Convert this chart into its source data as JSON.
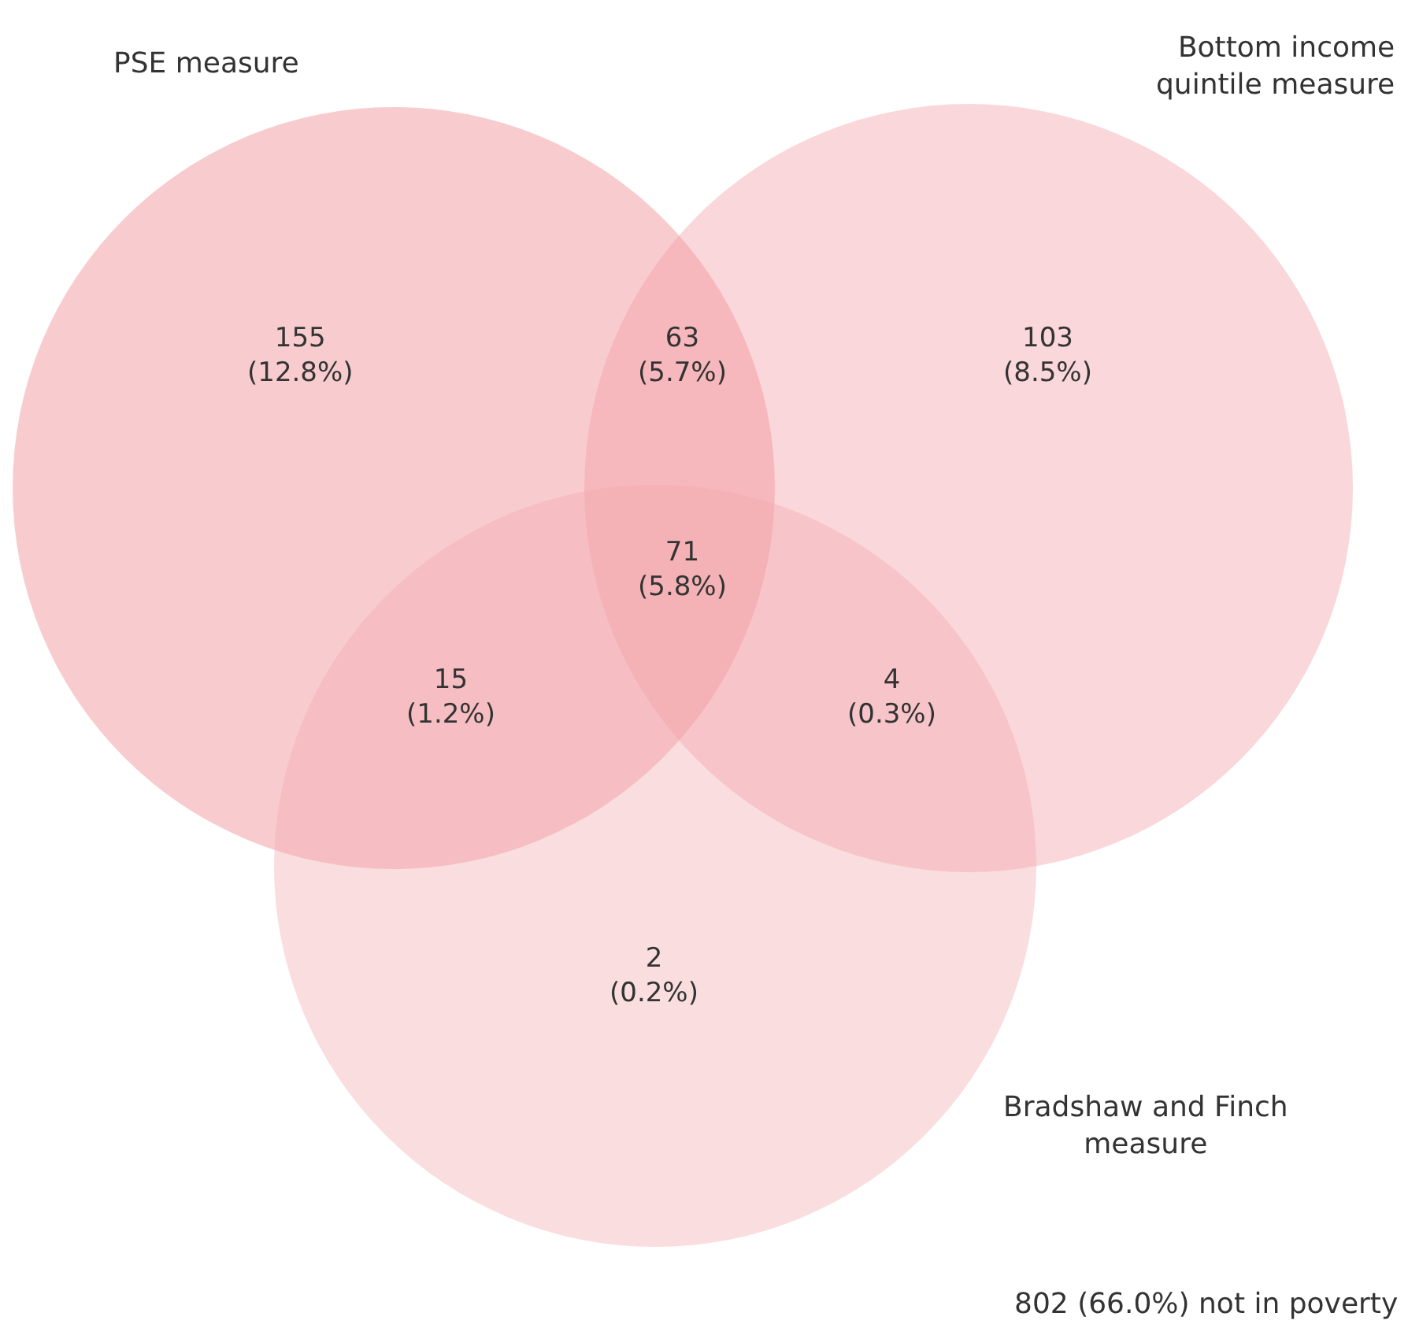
{
  "chart_data": {
    "type": "other",
    "categories": [
      null,
      null,
      null,
      null,
      null,
      null,
      null
    ],
    "values": [
      155,
      63,
      103,
      71,
      15,
      4,
      2
    ],
    "value_labels": [
      "155\n(12.8%)",
      "63\n(5.7%)",
      "103\n(8.5%)",
      "71\n(5.8%)",
      "15\n(1.2%)",
      "4\n(0.3%)",
      "2\n(0.2%)"
    ],
    "annotations": [
      "PSE measure",
      "Bottom income\nquintile measure",
      "Bradshaw and Finch\nmeasure",
      "802 (66.0%) not in poverty"
    ]
  }
}
